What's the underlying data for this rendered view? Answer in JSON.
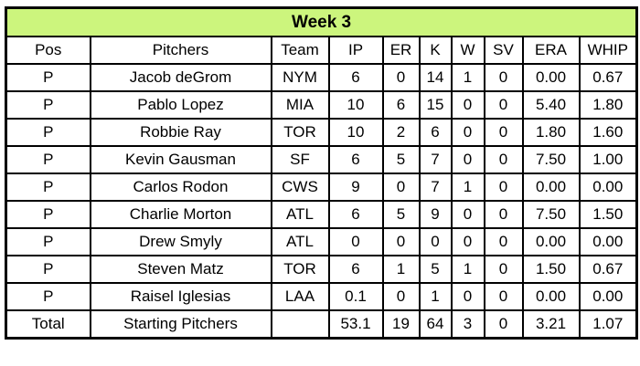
{
  "chart_data": {
    "type": "table",
    "title": "Week 3",
    "columns": [
      "Pos",
      "Pitchers",
      "Team",
      "IP",
      "ER",
      "K",
      "W",
      "SV",
      "ERA",
      "WHIP"
    ],
    "rows": [
      [
        "P",
        "Jacob deGrom",
        "NYM",
        "6",
        "0",
        "14",
        "1",
        "0",
        "0.00",
        "0.67"
      ],
      [
        "P",
        "Pablo Lopez",
        "MIA",
        "10",
        "6",
        "15",
        "0",
        "0",
        "5.40",
        "1.80"
      ],
      [
        "P",
        "Robbie Ray",
        "TOR",
        "10",
        "2",
        "6",
        "0",
        "0",
        "1.80",
        "1.60"
      ],
      [
        "P",
        "Kevin Gausman",
        "SF",
        "6",
        "5",
        "7",
        "0",
        "0",
        "7.50",
        "1.00"
      ],
      [
        "P",
        "Carlos Rodon",
        "CWS",
        "9",
        "0",
        "7",
        "1",
        "0",
        "0.00",
        "0.00"
      ],
      [
        "P",
        "Charlie Morton",
        "ATL",
        "6",
        "5",
        "9",
        "0",
        "0",
        "7.50",
        "1.50"
      ],
      [
        "P",
        "Drew Smyly",
        "ATL",
        "0",
        "0",
        "0",
        "0",
        "0",
        "0.00",
        "0.00"
      ],
      [
        "P",
        "Steven Matz",
        "TOR",
        "6",
        "1",
        "5",
        "1",
        "0",
        "1.50",
        "0.67"
      ],
      [
        "P",
        "Raisel Iglesias",
        "LAA",
        "0.1",
        "0",
        "1",
        "0",
        "0",
        "0.00",
        "0.00"
      ]
    ],
    "total_row": [
      "Total",
      "Starting Pitchers",
      "",
      "53.1",
      "19",
      "64",
      "3",
      "0",
      "3.21",
      "1.07"
    ]
  },
  "colors": {
    "title_bg": "#ccf57d",
    "border": "#000000",
    "background": "#ffffff",
    "text": "#000000"
  }
}
